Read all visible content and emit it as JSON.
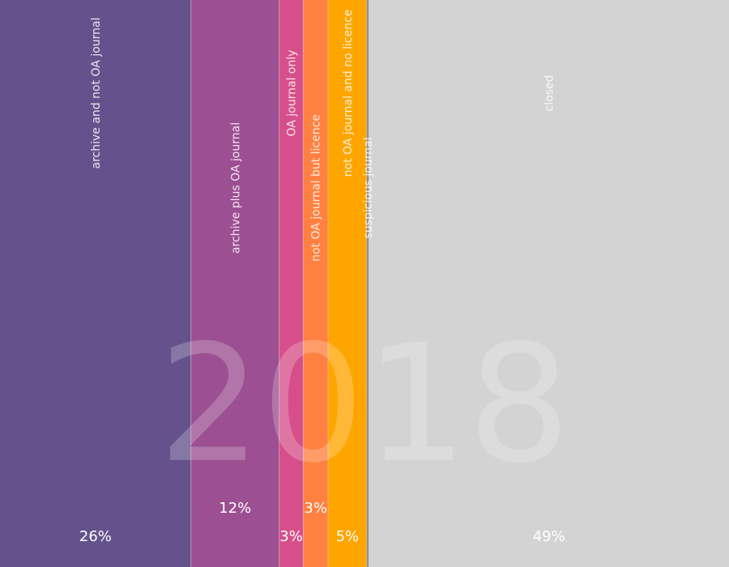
{
  "chart_data": {
    "type": "bar",
    "stacked": "horizontal-100-percent",
    "year": "2018",
    "segments": [
      {
        "name": "archive and not OA journal",
        "value": 26.2,
        "label": "26%",
        "color": "#65528c"
      },
      {
        "name": "archive plus OA journal",
        "value": 12.1,
        "label": "12%",
        "color": "#9c4f92"
      },
      {
        "name": "OA journal only",
        "value": 3.3,
        "label": "3%",
        "color": "#d64f8a"
      },
      {
        "name": "not OA journal but licence",
        "value": 3.4,
        "label": "3%",
        "color": "#ff8040"
      },
      {
        "name": "not OA journal and no licence",
        "value": 5.3,
        "label": "5%",
        "color": "#ffa500"
      },
      {
        "name": "suspicious journal",
        "value": 0.3,
        "label": "",
        "color": "#888888"
      },
      {
        "name": "closed",
        "value": 49.4,
        "label": "49%",
        "color": "#d3d3d3"
      }
    ]
  }
}
